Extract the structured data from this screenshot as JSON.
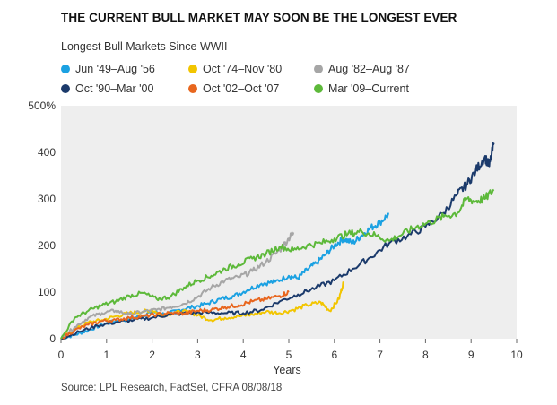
{
  "chart_data": {
    "type": "line",
    "title": "THE CURRENT BULL MARKET MAY SOON BE THE LONGEST EVER",
    "subtitle": "Longest Bull Markets Since WWII",
    "xlabel": "Years",
    "ylabel": "",
    "xlim": [
      0,
      10
    ],
    "ylim": [
      0,
      500
    ],
    "x_ticks": [
      "0",
      "1",
      "2",
      "3",
      "4",
      "5",
      "6",
      "7",
      "8",
      "9",
      "10"
    ],
    "y_ticks": [
      "0",
      "100",
      "200",
      "300",
      "400",
      "500%"
    ],
    "grid": false,
    "legend_position": "top",
    "source": "Source: LPL Research, FactSet, CFRA  08/08/18",
    "series": [
      {
        "name": "Jun '49–Aug '56",
        "color": "#1BA1E2",
        "points": [
          [
            0,
            0
          ],
          [
            0.3,
            8
          ],
          [
            0.6,
            18
          ],
          [
            0.9,
            30
          ],
          [
            1.2,
            38
          ],
          [
            1.5,
            42
          ],
          [
            1.8,
            50
          ],
          [
            2.0,
            58
          ],
          [
            2.3,
            52
          ],
          [
            2.6,
            62
          ],
          [
            2.9,
            68
          ],
          [
            3.2,
            75
          ],
          [
            3.5,
            85
          ],
          [
            3.8,
            92
          ],
          [
            4.1,
            105
          ],
          [
            4.4,
            118
          ],
          [
            4.7,
            122
          ],
          [
            5.0,
            135
          ],
          [
            5.2,
            130
          ],
          [
            5.4,
            148
          ],
          [
            5.6,
            162
          ],
          [
            5.8,
            180
          ],
          [
            6.0,
            200
          ],
          [
            6.2,
            215
          ],
          [
            6.4,
            205
          ],
          [
            6.6,
            222
          ],
          [
            6.8,
            238
          ],
          [
            7.0,
            250
          ],
          [
            7.2,
            268
          ]
        ]
      },
      {
        "name": "Oct '74–Nov '80",
        "color": "#F2C500",
        "points": [
          [
            0,
            0
          ],
          [
            0.3,
            20
          ],
          [
            0.6,
            35
          ],
          [
            0.9,
            40
          ],
          [
            1.2,
            48
          ],
          [
            1.5,
            55
          ],
          [
            1.8,
            58
          ],
          [
            2.0,
            62
          ],
          [
            2.2,
            50
          ],
          [
            2.5,
            56
          ],
          [
            2.8,
            58
          ],
          [
            3.0,
            50
          ],
          [
            3.3,
            40
          ],
          [
            3.6,
            45
          ],
          [
            3.9,
            48
          ],
          [
            4.2,
            52
          ],
          [
            4.5,
            58
          ],
          [
            4.8,
            55
          ],
          [
            5.1,
            62
          ],
          [
            5.4,
            72
          ],
          [
            5.7,
            78
          ],
          [
            5.9,
            60
          ],
          [
            6.1,
            85
          ],
          [
            6.2,
            122
          ]
        ]
      },
      {
        "name": "Aug '82–Aug '87",
        "color": "#A6A6A6",
        "points": [
          [
            0,
            0
          ],
          [
            0.3,
            25
          ],
          [
            0.6,
            45
          ],
          [
            0.9,
            55
          ],
          [
            1.2,
            60
          ],
          [
            1.5,
            52
          ],
          [
            1.8,
            58
          ],
          [
            2.1,
            62
          ],
          [
            2.4,
            68
          ],
          [
            2.7,
            75
          ],
          [
            3.0,
            90
          ],
          [
            3.3,
            110
          ],
          [
            3.6,
            125
          ],
          [
            3.9,
            132
          ],
          [
            4.2,
            145
          ],
          [
            4.5,
            165
          ],
          [
            4.8,
            190
          ],
          [
            5.0,
            215
          ],
          [
            5.1,
            228
          ]
        ]
      },
      {
        "name": "Oct '90–Mar '00",
        "color": "#1B3A6B",
        "points": [
          [
            0,
            0
          ],
          [
            0.4,
            15
          ],
          [
            0.8,
            28
          ],
          [
            1.2,
            35
          ],
          [
            1.6,
            40
          ],
          [
            2.0,
            45
          ],
          [
            2.4,
            52
          ],
          [
            2.8,
            55
          ],
          [
            3.2,
            56
          ],
          [
            3.6,
            55
          ],
          [
            4.0,
            55
          ],
          [
            4.4,
            62
          ],
          [
            4.8,
            80
          ],
          [
            5.2,
            95
          ],
          [
            5.6,
            110
          ],
          [
            6.0,
            125
          ],
          [
            6.4,
            150
          ],
          [
            6.8,
            175
          ],
          [
            7.2,
            205
          ],
          [
            7.6,
            220
          ],
          [
            8.0,
            240
          ],
          [
            8.4,
            270
          ],
          [
            8.7,
            310
          ],
          [
            8.9,
            330
          ],
          [
            9.1,
            360
          ],
          [
            9.3,
            390
          ],
          [
            9.4,
            370
          ],
          [
            9.5,
            420
          ]
        ]
      },
      {
        "name": "Oct '02–Oct '07",
        "color": "#E8661E",
        "points": [
          [
            0,
            0
          ],
          [
            0.3,
            18
          ],
          [
            0.6,
            30
          ],
          [
            0.9,
            38
          ],
          [
            1.2,
            40
          ],
          [
            1.5,
            45
          ],
          [
            1.8,
            48
          ],
          [
            2.1,
            52
          ],
          [
            2.4,
            55
          ],
          [
            2.7,
            54
          ],
          [
            3.0,
            60
          ],
          [
            3.3,
            62
          ],
          [
            3.6,
            68
          ],
          [
            3.9,
            72
          ],
          [
            4.2,
            80
          ],
          [
            4.5,
            85
          ],
          [
            4.8,
            92
          ],
          [
            5.0,
            100
          ]
        ]
      },
      {
        "name": "Mar '09–Current",
        "color": "#5DB93A",
        "points": [
          [
            0,
            0
          ],
          [
            0.3,
            45
          ],
          [
            0.6,
            60
          ],
          [
            0.9,
            72
          ],
          [
            1.2,
            80
          ],
          [
            1.5,
            92
          ],
          [
            1.8,
            98
          ],
          [
            2.1,
            85
          ],
          [
            2.4,
            90
          ],
          [
            2.7,
            110
          ],
          [
            3.0,
            125
          ],
          [
            3.3,
            135
          ],
          [
            3.6,
            150
          ],
          [
            3.9,
            160
          ],
          [
            4.2,
            172
          ],
          [
            4.5,
            182
          ],
          [
            4.8,
            198
          ],
          [
            5.1,
            190
          ],
          [
            5.4,
            200
          ],
          [
            5.7,
            205
          ],
          [
            6.0,
            215
          ],
          [
            6.3,
            225
          ],
          [
            6.6,
            230
          ],
          [
            6.9,
            222
          ],
          [
            7.2,
            210
          ],
          [
            7.5,
            225
          ],
          [
            7.8,
            240
          ],
          [
            8.1,
            250
          ],
          [
            8.4,
            262
          ],
          [
            8.7,
            270
          ],
          [
            8.9,
            300
          ],
          [
            9.1,
            295
          ],
          [
            9.3,
            300
          ],
          [
            9.5,
            320
          ]
        ]
      }
    ]
  }
}
